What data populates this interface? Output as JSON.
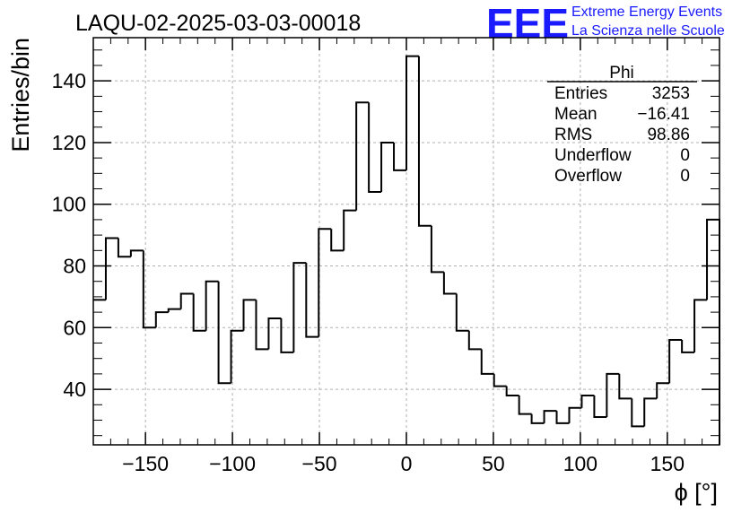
{
  "header": {
    "run_title": "LAQU-02-2025-03-03-00018",
    "logo_text": "EEE",
    "logo_line1": "Extreme Energy Events",
    "logo_line2": "La Scienza nelle Scuole",
    "logo_color": "#1a1aff"
  },
  "stats_box": {
    "name": "Phi",
    "rows": [
      {
        "label": "Entries",
        "value": "3253"
      },
      {
        "label": "Mean",
        "value": "−16.41"
      },
      {
        "label": "RMS",
        "value": "98.86"
      },
      {
        "label": "Underflow",
        "value": "0"
      },
      {
        "label": "Overflow",
        "value": "0"
      }
    ]
  },
  "chart_data": {
    "type": "bar",
    "style": "step-histogram",
    "title": "LAQU-02-2025-03-03-00018",
    "xlabel": "ϕ [°]",
    "ylabel": "Entries/bin",
    "xlim": [
      -180,
      180
    ],
    "ylim": [
      22,
      154
    ],
    "grid": true,
    "bin_width": 7.2,
    "x_ticks": [
      -150,
      -100,
      -50,
      0,
      50,
      100,
      150
    ],
    "x_tick_labels": [
      "−150",
      "−100",
      "−50",
      "0",
      "50",
      "100",
      "150"
    ],
    "y_ticks": [
      40,
      60,
      80,
      100,
      120,
      140
    ],
    "y_tick_labels": [
      "40",
      "60",
      "80",
      "100",
      "120",
      "140"
    ],
    "values": [
      69,
      89,
      83,
      85,
      60,
      65,
      66,
      71,
      59,
      75,
      42,
      59,
      69,
      53,
      63,
      52,
      81,
      57,
      92,
      85,
      98,
      133,
      104,
      120,
      111,
      148,
      93,
      78,
      71,
      59,
      53,
      45,
      41,
      38,
      32,
      29,
      33,
      29,
      34,
      38,
      31,
      45,
      37,
      28,
      37,
      42,
      56,
      52,
      69,
      95
    ]
  }
}
